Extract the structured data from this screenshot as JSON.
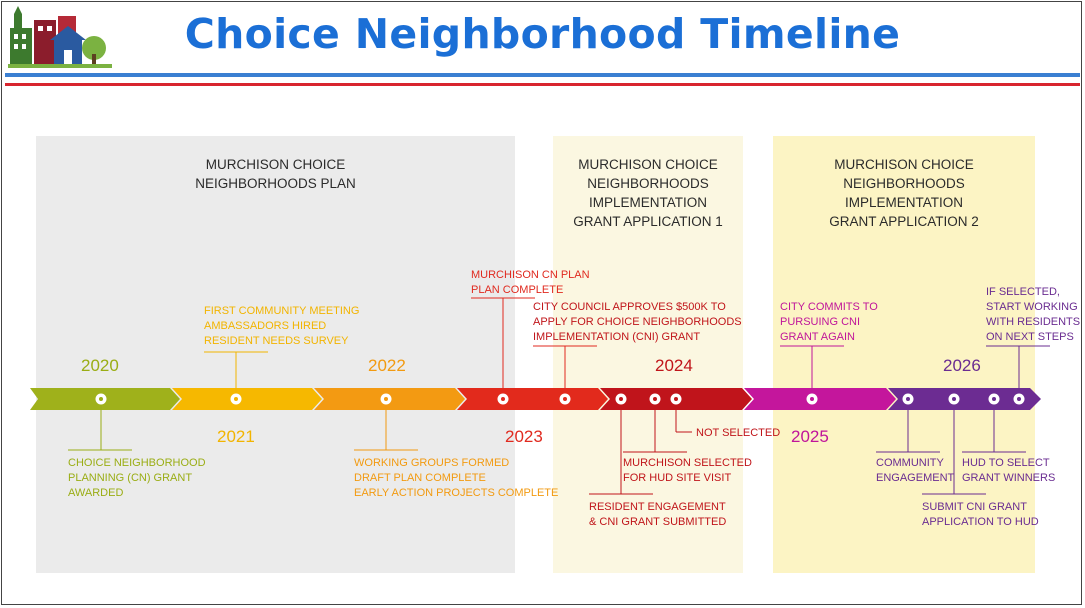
{
  "header": {
    "title": "Choice Neighborhood Timeline"
  },
  "panels": [
    {
      "lines": [
        "MURCHISON CHOICE",
        "NEIGHBORHOODS PLAN"
      ]
    },
    {
      "lines": [
        "MURCHISON CHOICE",
        "NEIGHBORHOODS",
        "IMPLEMENTATION",
        "GRANT APPLICATION 1"
      ]
    },
    {
      "lines": [
        "MURCHISON CHOICE",
        "NEIGHBORHOODS",
        "IMPLEMENTATION",
        "GRANT APPLICATION 2"
      ]
    }
  ],
  "years": {
    "y2020": "2020",
    "y2021": "2021",
    "y2022": "2022",
    "y2023": "2023",
    "y2024": "2024",
    "y2025": "2025",
    "y2026": "2026"
  },
  "events": {
    "e1": [
      "CHOICE NEIGHBORHOOD",
      "PLANNING (CN) GRANT",
      "AWARDED"
    ],
    "e2": [
      "FIRST COMMUNITY MEETING",
      "AMBASSADORS HIRED",
      "RESIDENT NEEDS SURVEY"
    ],
    "e3": [
      "WORKING GROUPS FORMED",
      "DRAFT PLAN COMPLETE",
      "EARLY ACTION PROJECTS COMPLETE"
    ],
    "e4": [
      "MURCHISON CN PLAN",
      "PLAN COMPLETE"
    ],
    "e5": [
      "CITY COUNCIL APPROVES $500K TO",
      "APPLY FOR CHOICE NEIGHBORHOODS",
      "IMPLEMENTATION (CNI) GRANT"
    ],
    "e6": [
      "RESIDENT ENGAGEMENT",
      "& CNI GRANT SUBMITTED"
    ],
    "e7": [
      "MURCHISON SELECTED",
      "FOR HUD SITE VISIT"
    ],
    "e8": [
      "NOT SELECTED"
    ],
    "e9": [
      "CITY COMMITS TO",
      "PURSUING CNI",
      "GRANT AGAIN"
    ],
    "e10": [
      "COMMUNITY",
      "ENGAGEMENT"
    ],
    "e11": [
      "SUBMIT CNI GRANT",
      "APPLICATION TO HUD"
    ],
    "e12": [
      "HUD TO SELECT",
      "GRANT WINNERS"
    ],
    "e13": [
      "IF SELECTED,",
      "START WORKING",
      "WITH RESIDENTS",
      "ON NEXT STEPS"
    ]
  },
  "colors": {
    "title": "#1b6fd6",
    "y2020": "#9aad14",
    "y2021": "#f2b400",
    "y2022": "#f29a10",
    "y2023": "#e02a1f",
    "y2024": "#c0151a",
    "y2025": "#c0159a",
    "y2026": "#6a2c91"
  }
}
